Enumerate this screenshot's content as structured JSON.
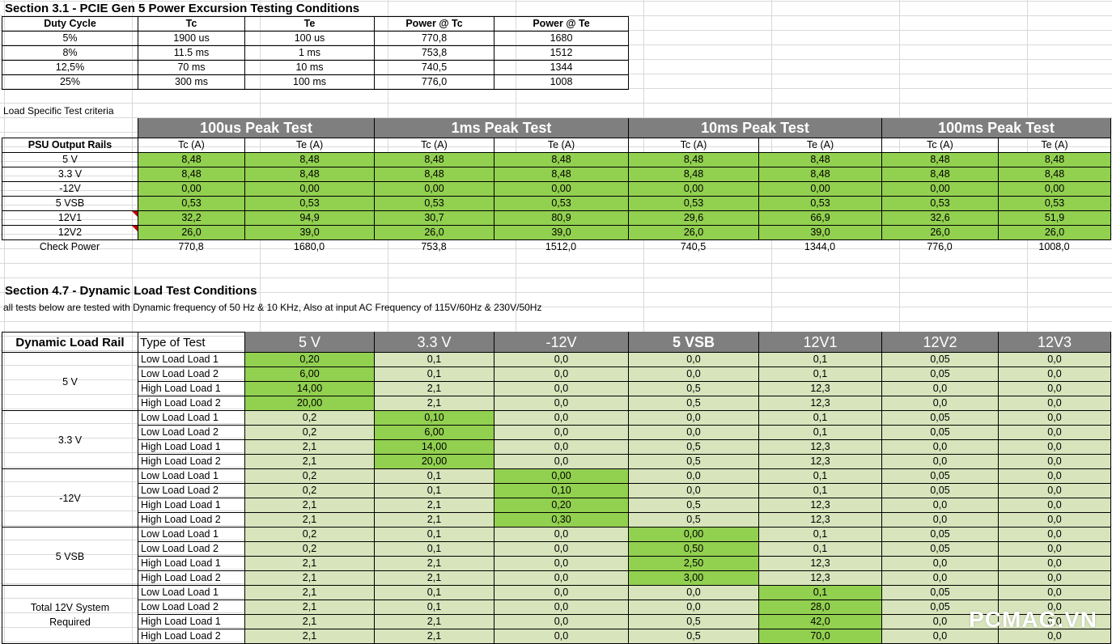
{
  "section31": {
    "title": "Section 3.1 - PCIE Gen 5 Power Excursion Testing Conditions",
    "headers": [
      "Duty Cycle",
      "Tc",
      "Te",
      "Power @ Tc",
      "Power @ Te"
    ],
    "rows": [
      [
        "5%",
        "1900 us",
        "100 us",
        "770,8",
        "1680"
      ],
      [
        "8%",
        "11.5 ms",
        "1 ms",
        "753,8",
        "1512"
      ],
      [
        "12,5%",
        "70 ms",
        "10 ms",
        "740,5",
        "1344"
      ],
      [
        "25%",
        "300 ms",
        "100 ms",
        "776,0",
        "1008"
      ]
    ]
  },
  "load_criteria": {
    "note": "Load Specific Test criteria",
    "peak_tests": [
      "100us Peak Test",
      "1ms Peak Test",
      "10ms Peak Test",
      "100ms Peak Test"
    ],
    "rails_label": "PSU Output Rails",
    "tc_label": "Tc (A)",
    "te_label": "Te (A)",
    "rows": [
      {
        "rail": "5 V",
        "vals": [
          "8,48",
          "8,48",
          "8,48",
          "8,48",
          "8,48",
          "8,48",
          "8,48",
          "8,48"
        ]
      },
      {
        "rail": "3.3 V",
        "vals": [
          "8,48",
          "8,48",
          "8,48",
          "8,48",
          "8,48",
          "8,48",
          "8,48",
          "8,48"
        ]
      },
      {
        "rail": "-12V",
        "vals": [
          "0,00",
          "0,00",
          "0,00",
          "0,00",
          "0,00",
          "0,00",
          "0,00",
          "0,00"
        ]
      },
      {
        "rail": "5 VSB",
        "vals": [
          "0,53",
          "0,53",
          "0,53",
          "0,53",
          "0,53",
          "0,53",
          "0,53",
          "0,53"
        ]
      },
      {
        "rail": "12V1",
        "vals": [
          "32,2",
          "94,9",
          "30,7",
          "80,9",
          "29,6",
          "66,9",
          "32,6",
          "51,9"
        ]
      },
      {
        "rail": "12V2",
        "vals": [
          "26,0",
          "39,0",
          "26,0",
          "39,0",
          "26,0",
          "39,0",
          "26,0",
          "26,0"
        ]
      }
    ],
    "check_power": {
      "label": "Check Power",
      "vals": [
        "770,8",
        "1680,0",
        "753,8",
        "1512,0",
        "740,5",
        "1344,0",
        "776,0",
        "1008,0"
      ]
    }
  },
  "section47": {
    "title": "Section 4.7 - Dynamic Load Test Conditions",
    "note": "all tests below are tested with Dynamic frequency of 50 Hz & 10 KHz,  Also at input AC Frequency of 115V/60Hz & 230V/50Hz",
    "rail_header": "Dynamic Load Rail",
    "type_header": "Type of Test",
    "col_headers": [
      "5 V",
      "3.3 V",
      "-12V",
      "5 VSB",
      "12V1",
      "12V2",
      "12V3"
    ],
    "groups": [
      {
        "rail": "5 V",
        "rows": [
          {
            "type": "Low Load Load 1",
            "vals": [
              "0,20",
              "0,1",
              "0,0",
              "0,0",
              "0,1",
              "0,05",
              "0,0"
            ]
          },
          {
            "type": "Low Load Load 2",
            "vals": [
              "6,00",
              "0,1",
              "0,0",
              "0,0",
              "0,1",
              "0,05",
              "0,0"
            ]
          },
          {
            "type": "High Load Load 1",
            "vals": [
              "14,00",
              "2,1",
              "0,0",
              "0,5",
              "12,3",
              "0,0",
              "0,0"
            ]
          },
          {
            "type": "High Load Load 2",
            "vals": [
              "20,00",
              "2,1",
              "0,0",
              "0,5",
              "12,3",
              "0,0",
              "0,0"
            ]
          }
        ]
      },
      {
        "rail": "3.3 V",
        "rows": [
          {
            "type": "Low Load Load 1",
            "vals": [
              "0,2",
              "0,10",
              "0,0",
              "0,0",
              "0,1",
              "0,05",
              "0,0"
            ]
          },
          {
            "type": "Low Load Load 2",
            "vals": [
              "0,2",
              "6,00",
              "0,0",
              "0,0",
              "0,1",
              "0,05",
              "0,0"
            ]
          },
          {
            "type": "High Load Load 1",
            "vals": [
              "2,1",
              "14,00",
              "0,0",
              "0,5",
              "12,3",
              "0,0",
              "0,0"
            ]
          },
          {
            "type": "High Load Load 2",
            "vals": [
              "2,1",
              "20,00",
              "0,0",
              "0,5",
              "12,3",
              "0,0",
              "0,0"
            ]
          }
        ]
      },
      {
        "rail": "-12V",
        "rows": [
          {
            "type": "Low Load Load 1",
            "vals": [
              "0,2",
              "0,1",
              "0,00",
              "0,0",
              "0,1",
              "0,05",
              "0,0"
            ]
          },
          {
            "type": "Low Load Load 2",
            "vals": [
              "0,2",
              "0,1",
              "0,10",
              "0,0",
              "0,1",
              "0,05",
              "0,0"
            ]
          },
          {
            "type": "High Load Load 1",
            "vals": [
              "2,1",
              "2,1",
              "0,20",
              "0,5",
              "12,3",
              "0,0",
              "0,0"
            ]
          },
          {
            "type": "High Load Load 2",
            "vals": [
              "2,1",
              "2,1",
              "0,30",
              "0,5",
              "12,3",
              "0,0",
              "0,0"
            ]
          }
        ]
      },
      {
        "rail": "5 VSB",
        "rows": [
          {
            "type": "Low Load Load 1",
            "vals": [
              "0,2",
              "0,1",
              "0,0",
              "0,00",
              "0,1",
              "0,05",
              "0,0"
            ]
          },
          {
            "type": "Low Load Load 2",
            "vals": [
              "0,2",
              "0,1",
              "0,0",
              "0,50",
              "0,1",
              "0,05",
              "0,0"
            ]
          },
          {
            "type": "High Load Load 1",
            "vals": [
              "2,1",
              "2,1",
              "0,0",
              "2,50",
              "12,3",
              "0,0",
              "0,0"
            ]
          },
          {
            "type": "High Load Load 2",
            "vals": [
              "2,1",
              "2,1",
              "0,0",
              "3,00",
              "12,3",
              "0,0",
              "0,0"
            ]
          }
        ]
      },
      {
        "rail": "Total 12V System Required",
        "rows": [
          {
            "type": "Low Load Load 1",
            "vals": [
              "2,1",
              "0,1",
              "0,0",
              "0,0",
              "0,1",
              "0,05",
              "0,0"
            ]
          },
          {
            "type": "Low Load Load 2",
            "vals": [
              "2,1",
              "0,1",
              "0,0",
              "0,0",
              "28,0",
              "0,05",
              "0,0"
            ]
          },
          {
            "type": "High Load Load 1",
            "vals": [
              "2,1",
              "2,1",
              "0,0",
              "0,5",
              "42,0",
              "0,0",
              "0,0"
            ]
          },
          {
            "type": "High Load Load 2",
            "vals": [
              "2,1",
              "2,1",
              "0,0",
              "0,5",
              "70,0",
              "0,0",
              "0,0"
            ]
          }
        ]
      }
    ]
  },
  "watermark": "PCMAG.VN",
  "colors": {
    "green": "#92d050",
    "light_green": "#d8e4bc",
    "header_gray": "#7f7f7f",
    "comment_marker": "#c00000"
  }
}
